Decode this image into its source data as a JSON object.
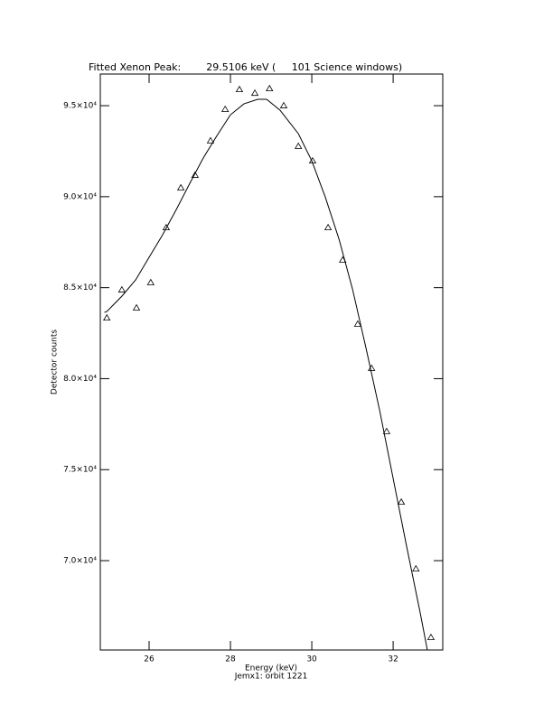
{
  "chart_data": {
    "type": "scatter",
    "title": "Fitted Xenon Peak:        29.5106 keV (     101 Science windows)",
    "x_label": "Energy (keV)",
    "subtitle": "Jemx1: orbit 1221",
    "y_label": "Detector counts",
    "xlim": [
      24.8,
      33.22
    ],
    "xticks": [
      26,
      28,
      30,
      32
    ],
    "ylim": [
      65090,
      96740
    ],
    "yticks": [
      {
        "value": 70000,
        "label": "7.0×10⁴"
      },
      {
        "value": 75000,
        "label": "7.5×10⁴"
      },
      {
        "value": 80000,
        "label": "8.0×10⁴"
      },
      {
        "value": 85000,
        "label": "8.5×10⁴"
      },
      {
        "value": 90000,
        "label": "9.0×10⁴"
      },
      {
        "value": 95000,
        "label": "9.5×10⁴"
      }
    ],
    "color": "#000000",
    "series": [
      {
        "marker": "triangle",
        "x": [
          24.96,
          25.33,
          25.69,
          26.04,
          26.42,
          26.78,
          27.13,
          27.51,
          27.87,
          28.22,
          28.6,
          28.96,
          29.31,
          29.67,
          30.02,
          30.4,
          30.76,
          31.13,
          31.47,
          31.84,
          32.2,
          32.56,
          32.93
        ],
        "values": [
          83340,
          84880,
          83890,
          85280,
          88300,
          90490,
          91180,
          93070,
          94800,
          95890,
          95690,
          95940,
          95000,
          92770,
          91970,
          88300,
          86520,
          83000,
          80570,
          77100,
          73220,
          69550,
          65780
        ]
      },
      {
        "marker": "line",
        "x": [
          24.9,
          24.96,
          25.33,
          25.67,
          26.0,
          26.33,
          26.67,
          27.0,
          27.33,
          27.67,
          28.0,
          28.33,
          28.67,
          28.89,
          29.22,
          29.67,
          30.0,
          30.33,
          30.67,
          31.0,
          31.33,
          31.67,
          32.0,
          32.33,
          32.67,
          32.84
        ],
        "values": [
          83640,
          83690,
          84530,
          85430,
          86670,
          87900,
          89300,
          90730,
          92120,
          93360,
          94500,
          95100,
          95350,
          95350,
          94750,
          93460,
          91970,
          89990,
          87660,
          84930,
          81710,
          78240,
          74520,
          70800,
          67080,
          65100
        ]
      }
    ]
  }
}
